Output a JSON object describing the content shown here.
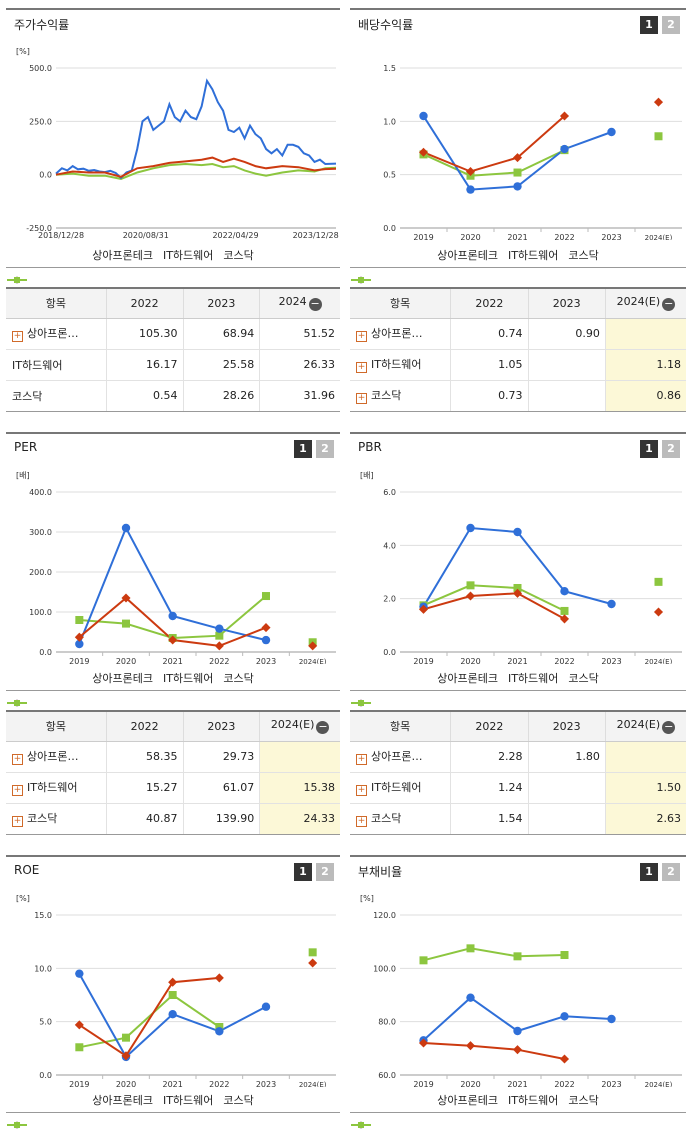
{
  "colors": {
    "blue": "#2f6fd8",
    "red": "#cc3a10",
    "green": "#8cc63f",
    "estimate_bg": "#fcf8d7"
  },
  "legend": [
    "상아프론테크",
    "IT하드웨어",
    "코스닥"
  ],
  "pages": [
    "1",
    "2"
  ],
  "charts": {
    "stock": {
      "title": "주가수익률",
      "chart_data": {
        "type": "line",
        "unit": "[%]",
        "ylim": [
          -250,
          500
        ],
        "yticks": [
          "500.0",
          "250.0",
          "0.0",
          "-250.0"
        ],
        "xticks": [
          "2018/12/28",
          "2020/08/31",
          "2022/04/29",
          "2023/12/28"
        ],
        "series": [
          {
            "name": "상아프론테크",
            "points": [
              [
                2018.99,
                5
              ],
              [
                2019.1,
                30
              ],
              [
                2019.2,
                20
              ],
              [
                2019.3,
                40
              ],
              [
                2019.4,
                25
              ],
              [
                2019.5,
                28
              ],
              [
                2019.6,
                18
              ],
              [
                2019.7,
                22
              ],
              [
                2019.8,
                15
              ],
              [
                2019.9,
                12
              ],
              [
                2020.0,
                18
              ],
              [
                2020.1,
                8
              ],
              [
                2020.2,
                -15
              ],
              [
                2020.3,
                10
              ],
              [
                2020.4,
                20
              ],
              [
                2020.5,
                120
              ],
              [
                2020.6,
                250
              ],
              [
                2020.7,
                270
              ],
              [
                2020.8,
                210
              ],
              [
                2020.9,
                230
              ],
              [
                2021.0,
                250
              ],
              [
                2021.1,
                330
              ],
              [
                2021.2,
                270
              ],
              [
                2021.3,
                250
              ],
              [
                2021.4,
                300
              ],
              [
                2021.5,
                270
              ],
              [
                2021.6,
                260
              ],
              [
                2021.7,
                320
              ],
              [
                2021.8,
                440
              ],
              [
                2021.9,
                400
              ],
              [
                2022.0,
                340
              ],
              [
                2022.1,
                300
              ],
              [
                2022.2,
                210
              ],
              [
                2022.3,
                200
              ],
              [
                2022.4,
                220
              ],
              [
                2022.5,
                170
              ],
              [
                2022.6,
                230
              ],
              [
                2022.7,
                190
              ],
              [
                2022.8,
                170
              ],
              [
                2022.9,
                120
              ],
              [
                2023.0,
                100
              ],
              [
                2023.1,
                120
              ],
              [
                2023.2,
                90
              ],
              [
                2023.3,
                140
              ],
              [
                2023.4,
                140
              ],
              [
                2023.5,
                130
              ],
              [
                2023.6,
                100
              ],
              [
                2023.7,
                90
              ],
              [
                2023.8,
                60
              ],
              [
                2023.9,
                70
              ],
              [
                2024.0,
                50
              ],
              [
                2024.2,
                52
              ]
            ]
          },
          {
            "name": "IT하드웨어",
            "points": [
              [
                2018.99,
                0
              ],
              [
                2019.3,
                15
              ],
              [
                2019.6,
                10
              ],
              [
                2019.9,
                10
              ],
              [
                2020.2,
                -10
              ],
              [
                2020.5,
                30
              ],
              [
                2020.8,
                40
              ],
              [
                2021.1,
                55
              ],
              [
                2021.4,
                62
              ],
              [
                2021.7,
                70
              ],
              [
                2021.9,
                80
              ],
              [
                2022.1,
                60
              ],
              [
                2022.3,
                75
              ],
              [
                2022.5,
                60
              ],
              [
                2022.7,
                40
              ],
              [
                2022.9,
                30
              ],
              [
                2023.2,
                40
              ],
              [
                2023.5,
                35
              ],
              [
                2023.8,
                20
              ],
              [
                2024.0,
                26
              ],
              [
                2024.2,
                28
              ]
            ]
          },
          {
            "name": "코스닥",
            "points": [
              [
                2018.99,
                0
              ],
              [
                2019.3,
                5
              ],
              [
                2019.6,
                -5
              ],
              [
                2019.9,
                -5
              ],
              [
                2020.2,
                -20
              ],
              [
                2020.5,
                10
              ],
              [
                2020.8,
                30
              ],
              [
                2021.1,
                45
              ],
              [
                2021.4,
                50
              ],
              [
                2021.7,
                45
              ],
              [
                2021.9,
                50
              ],
              [
                2022.1,
                35
              ],
              [
                2022.3,
                40
              ],
              [
                2022.5,
                20
              ],
              [
                2022.7,
                5
              ],
              [
                2022.9,
                -5
              ],
              [
                2023.2,
                10
              ],
              [
                2023.5,
                20
              ],
              [
                2023.8,
                15
              ],
              [
                2024.0,
                30
              ],
              [
                2024.2,
                32
              ]
            ]
          }
        ]
      }
    },
    "div": {
      "title": "배당수익률",
      "chart_data": {
        "type": "line",
        "ylim": [
          0,
          1.5
        ],
        "yticks": [
          "1.5",
          "1.0",
          "0.5",
          "0.0"
        ],
        "categories": [
          "2019",
          "2020",
          "2021",
          "2022",
          "2023",
          "2024(E)"
        ],
        "series": [
          {
            "name": "상아프론테크",
            "values": [
              1.05,
              0.36,
              0.39,
              0.74,
              0.9,
              null
            ]
          },
          {
            "name": "IT하드웨어",
            "values": [
              0.71,
              0.53,
              0.66,
              1.05,
              null,
              1.18
            ]
          },
          {
            "name": "코스닥",
            "values": [
              0.69,
              0.49,
              0.52,
              0.73,
              null,
              0.86
            ]
          }
        ]
      }
    },
    "per": {
      "title": "PER",
      "chart_data": {
        "type": "line",
        "unit": "[배]",
        "ylim": [
          0,
          400
        ],
        "yticks": [
          "400.0",
          "300.0",
          "200.0",
          "100.0",
          "0.0"
        ],
        "categories": [
          "2019",
          "2020",
          "2021",
          "2022",
          "2023",
          "2024(E)"
        ],
        "series": [
          {
            "name": "상아프론테크",
            "values": [
              20,
              310,
              90,
              58.35,
              29.73,
              null
            ]
          },
          {
            "name": "IT하드웨어",
            "values": [
              37,
              135,
              30,
              15.27,
              61.07,
              15.38
            ]
          },
          {
            "name": "코스닥",
            "values": [
              80,
              71,
              35,
              40.87,
              139.9,
              24.33
            ]
          }
        ]
      }
    },
    "pbr": {
      "title": "PBR",
      "chart_data": {
        "type": "line",
        "unit": "[배]",
        "ylim": [
          0,
          6
        ],
        "yticks": [
          "6.0",
          "4.0",
          "2.0",
          "0.0"
        ],
        "categories": [
          "2019",
          "2020",
          "2021",
          "2022",
          "2023",
          "2024(E)"
        ],
        "series": [
          {
            "name": "상아프론테크",
            "values": [
              1.7,
              4.65,
              4.5,
              2.28,
              1.8,
              null
            ]
          },
          {
            "name": "IT하드웨어",
            "values": [
              1.6,
              2.1,
              2.2,
              1.24,
              null,
              1.5
            ]
          },
          {
            "name": "코스닥",
            "values": [
              1.75,
              2.5,
              2.4,
              1.54,
              null,
              2.63
            ]
          }
        ]
      }
    },
    "roe": {
      "title": "ROE",
      "chart_data": {
        "type": "line",
        "unit": "[%]",
        "ylim": [
          0,
          15
        ],
        "yticks": [
          "15.0",
          "10.0",
          "5.0",
          "0.0"
        ],
        "categories": [
          "2019",
          "2020",
          "2021",
          "2022",
          "2023",
          "2024(E)"
        ],
        "series": [
          {
            "name": "상아프론테크",
            "values": [
              9.5,
              1.7,
              5.7,
              4.1,
              6.4,
              null
            ]
          },
          {
            "name": "IT하드웨어",
            "values": [
              4.7,
              1.8,
              8.7,
              9.1,
              null,
              10.5
            ]
          },
          {
            "name": "코스닥",
            "values": [
              2.6,
              3.5,
              7.5,
              4.5,
              null,
              11.5
            ]
          }
        ]
      }
    },
    "debt": {
      "title": "부채비율",
      "chart_data": {
        "type": "line",
        "unit": "[%]",
        "ylim": [
          60,
          120
        ],
        "yticks": [
          "120.0",
          "100.0",
          "80.0",
          "60.0"
        ],
        "categories": [
          "2019",
          "2020",
          "2021",
          "2022",
          "2023",
          "2024(E)"
        ],
        "series": [
          {
            "name": "상아프론테크",
            "values": [
              73,
              89,
              76.5,
              82,
              81,
              null
            ]
          },
          {
            "name": "IT하드웨어",
            "values": [
              72,
              71,
              69.5,
              66,
              null,
              null
            ]
          },
          {
            "name": "코스닥",
            "values": [
              103,
              107.5,
              104.5,
              105,
              null,
              null
            ]
          }
        ]
      }
    }
  },
  "tables": {
    "stock": {
      "header": [
        "항목",
        "2022",
        "2023",
        "2024"
      ],
      "rows": [
        {
          "name": "상아프론…",
          "plus": true,
          "vals": [
            "105.30",
            "68.94",
            "51.52"
          ]
        },
        {
          "name": "IT하드웨어",
          "plus": false,
          "vals": [
            "16.17",
            "25.58",
            "26.33"
          ]
        },
        {
          "name": "코스닥",
          "plus": false,
          "vals": [
            "0.54",
            "28.26",
            "31.96"
          ]
        }
      ]
    },
    "div": {
      "header": [
        "항목",
        "2022",
        "2023",
        "2024(E)"
      ],
      "rows": [
        {
          "name": "상아프론…",
          "plus": true,
          "vals": [
            "0.74",
            "0.90",
            ""
          ]
        },
        {
          "name": "IT하드웨어",
          "plus": true,
          "vals": [
            "1.05",
            "",
            "1.18"
          ]
        },
        {
          "name": "코스닥",
          "plus": true,
          "vals": [
            "0.73",
            "",
            "0.86"
          ]
        }
      ]
    },
    "per": {
      "header": [
        "항목",
        "2022",
        "2023",
        "2024(E)"
      ],
      "rows": [
        {
          "name": "상아프론…",
          "plus": true,
          "vals": [
            "58.35",
            "29.73",
            ""
          ]
        },
        {
          "name": "IT하드웨어",
          "plus": true,
          "vals": [
            "15.27",
            "61.07",
            "15.38"
          ]
        },
        {
          "name": "코스닥",
          "plus": true,
          "vals": [
            "40.87",
            "139.90",
            "24.33"
          ]
        }
      ]
    },
    "pbr": {
      "header": [
        "항목",
        "2022",
        "2023",
        "2024(E)"
      ],
      "rows": [
        {
          "name": "상아프론…",
          "plus": true,
          "vals": [
            "2.28",
            "1.80",
            ""
          ]
        },
        {
          "name": "IT하드웨어",
          "plus": true,
          "vals": [
            "1.24",
            "",
            "1.50"
          ]
        },
        {
          "name": "코스닥",
          "plus": true,
          "vals": [
            "1.54",
            "",
            "2.63"
          ]
        }
      ]
    }
  }
}
